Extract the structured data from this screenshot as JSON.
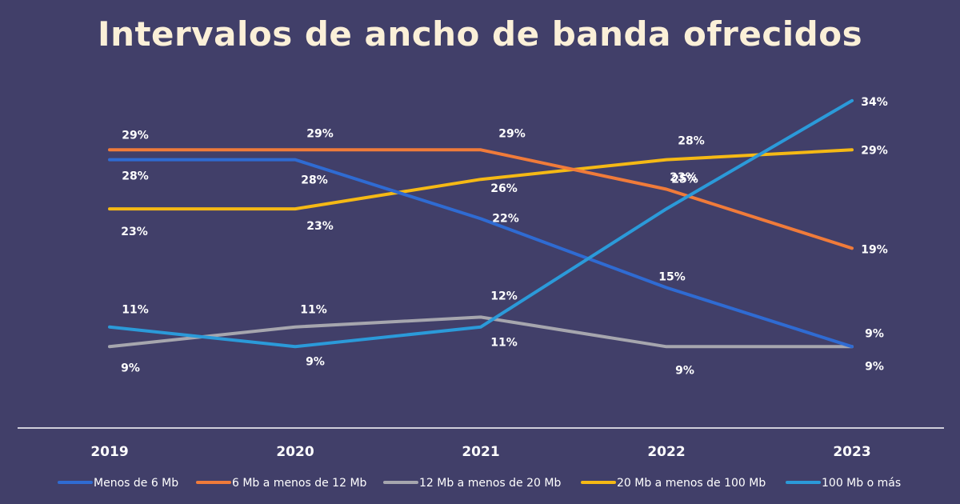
{
  "chart_data": {
    "type": "line",
    "title": "Intervalos de ancho de banda ofrecidos",
    "x": [
      "2019",
      "2020",
      "2021",
      "2022",
      "2023"
    ],
    "ylim": [
      0,
      40
    ],
    "grid": false,
    "legend_position": "bottom",
    "series": [
      {
        "name": "Menos de 6 Mb",
        "color": "#2f6bd2",
        "values": [
          28,
          28,
          22,
          15,
          9
        ],
        "labels": [
          "28%",
          "28%",
          "22%",
          "15%",
          "9%"
        ]
      },
      {
        "name": "6 Mb a menos de 12 Mb",
        "color": "#f07b3a",
        "values": [
          29,
          29,
          29,
          25,
          19
        ],
        "labels": [
          "29%",
          "29%",
          "29%",
          "25%",
          "19%"
        ]
      },
      {
        "name": "12 Mb a menos de 20 Mb",
        "color": "#a6a6ae",
        "values": [
          9,
          11,
          12,
          9,
          9
        ],
        "labels": [
          "9%",
          "11%",
          "12%",
          "9%",
          "9%"
        ]
      },
      {
        "name": "20 Mb a menos de 100 Mb",
        "color": "#f5b915",
        "values": [
          23,
          23,
          26,
          28,
          29
        ],
        "labels": [
          "23%",
          "23%",
          "26%",
          "28%",
          "29%"
        ]
      },
      {
        "name": "100 Mb o más",
        "color": "#2b9ad9",
        "values": [
          11,
          9,
          11,
          23,
          34
        ],
        "labels": [
          "11%",
          "9%",
          "11%",
          "23%",
          "34%"
        ]
      }
    ]
  }
}
